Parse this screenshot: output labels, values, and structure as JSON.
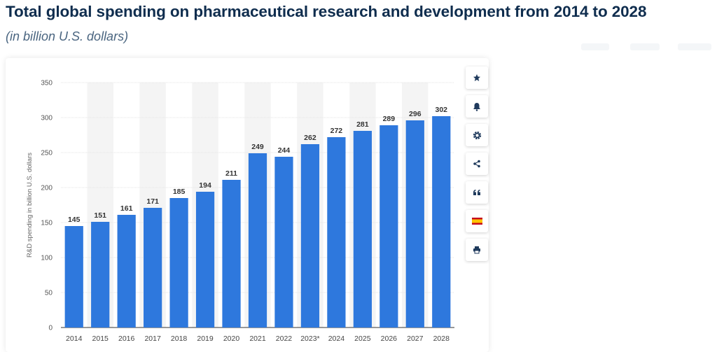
{
  "header": {
    "title": "Total global spending on pharmaceutical research and development from 2014 to 2028",
    "subtitle": "(in billion U.S. dollars)"
  },
  "toolbar": {
    "buttons": [
      {
        "name": "favorite-button",
        "icon": "star-icon"
      },
      {
        "name": "notification-button",
        "icon": "bell-icon"
      },
      {
        "name": "settings-button",
        "icon": "gear-icon"
      },
      {
        "name": "share-button",
        "icon": "share-icon"
      },
      {
        "name": "cite-button",
        "icon": "quote-icon"
      },
      {
        "name": "language-button",
        "icon": "spain-flag-icon"
      },
      {
        "name": "print-button",
        "icon": "printer-icon"
      }
    ]
  },
  "chart_data": {
    "type": "bar",
    "title": "",
    "xlabel": "",
    "ylabel": "R&D spending in billion U.S. dollars",
    "categories": [
      "2014",
      "2015",
      "2016",
      "2017",
      "2018",
      "2019",
      "2020",
      "2021",
      "2022",
      "2023*",
      "2024",
      "2025",
      "2026",
      "2027",
      "2028"
    ],
    "values": [
      145,
      151,
      161,
      171,
      185,
      194,
      211,
      249,
      244,
      262,
      272,
      281,
      289,
      296,
      302
    ],
    "ylim": [
      0,
      350
    ],
    "yticks": [
      0,
      50,
      100,
      150,
      200,
      250,
      300,
      350
    ],
    "grid": true,
    "bar_color": "#2e78dd",
    "label_color": "#333333"
  }
}
